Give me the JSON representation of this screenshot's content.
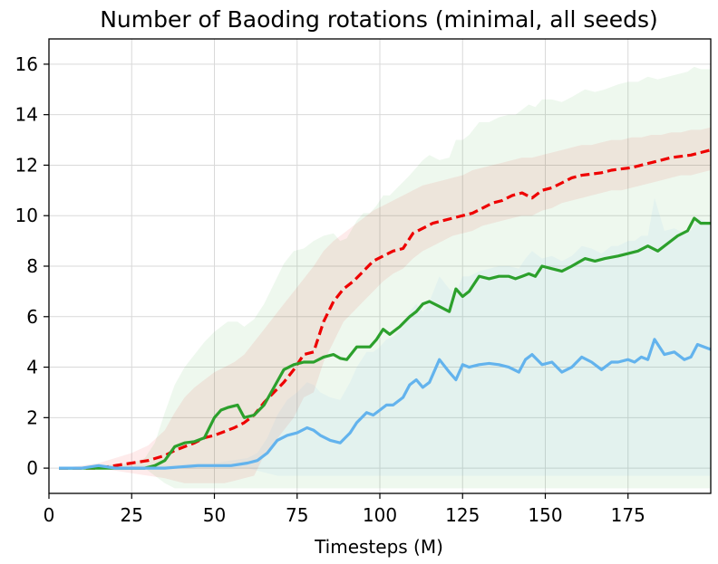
{
  "chart_data": {
    "type": "line",
    "title": "Number of Baoding rotations (minimal, all seeds)",
    "xlabel": "Timesteps (M)",
    "ylabel": "",
    "xlim": [
      0,
      200
    ],
    "ylim": [
      -1,
      17
    ],
    "xticks": [
      0,
      25,
      50,
      75,
      100,
      125,
      150,
      175
    ],
    "yticks": [
      0,
      2,
      4,
      6,
      8,
      10,
      12,
      14,
      16
    ],
    "grid": true,
    "series": [
      {
        "color": "#ee0000",
        "linestyle": "dashed",
        "x": [
          3,
          10,
          15,
          20,
          25,
          30,
          35,
          38,
          41,
          44,
          47,
          50,
          53,
          56,
          59,
          62,
          65,
          68,
          71,
          74,
          77,
          80,
          83,
          86,
          89,
          92,
          95,
          98,
          101,
          104,
          107,
          110,
          113,
          116,
          119,
          122,
          125,
          128,
          131,
          134,
          137,
          140,
          143,
          146,
          149,
          152,
          155,
          158,
          161,
          164,
          167,
          170,
          173,
          176,
          179,
          182,
          185,
          188,
          191,
          194,
          197,
          200
        ],
        "y": [
          0,
          0,
          0,
          0.1,
          0.2,
          0.3,
          0.5,
          0.7,
          0.85,
          1.0,
          1.2,
          1.3,
          1.45,
          1.6,
          1.8,
          2.1,
          2.6,
          3.0,
          3.4,
          3.9,
          4.5,
          4.6,
          5.8,
          6.6,
          7.1,
          7.4,
          7.8,
          8.2,
          8.4,
          8.6,
          8.7,
          9.3,
          9.5,
          9.7,
          9.8,
          9.9,
          10.0,
          10.1,
          10.3,
          10.5,
          10.6,
          10.8,
          10.9,
          10.7,
          11.0,
          11.1,
          11.3,
          11.5,
          11.6,
          11.65,
          11.7,
          11.8,
          11.85,
          11.9,
          12.0,
          12.1,
          12.2,
          12.3,
          12.35,
          12.4,
          12.5,
          12.6
        ],
        "band_low": [
          0,
          0,
          0,
          -0.1,
          -0.2,
          -0.3,
          -0.4,
          -0.5,
          -0.6,
          -0.6,
          -0.6,
          -0.6,
          -0.6,
          -0.5,
          -0.4,
          -0.3,
          0.5,
          1.0,
          1.5,
          2.0,
          2.8,
          3.0,
          4.2,
          5.0,
          5.8,
          6.2,
          6.6,
          7.0,
          7.4,
          7.7,
          7.9,
          8.3,
          8.6,
          8.8,
          9.0,
          9.2,
          9.3,
          9.4,
          9.6,
          9.7,
          9.8,
          9.9,
          10.0,
          10.0,
          10.2,
          10.3,
          10.5,
          10.6,
          10.7,
          10.8,
          10.9,
          11.0,
          11.0,
          11.1,
          11.2,
          11.3,
          11.4,
          11.5,
          11.6,
          11.6,
          11.7,
          11.8
        ],
        "band_high": [
          0,
          0.1,
          0.2,
          0.4,
          0.6,
          0.9,
          1.5,
          2.2,
          2.8,
          3.2,
          3.5,
          3.8,
          4.0,
          4.2,
          4.5,
          5.0,
          5.5,
          6.0,
          6.5,
          7.0,
          7.5,
          8.0,
          8.6,
          9.0,
          9.3,
          9.6,
          9.9,
          10.2,
          10.4,
          10.6,
          10.8,
          11.0,
          11.2,
          11.3,
          11.4,
          11.5,
          11.6,
          11.8,
          11.9,
          12.0,
          12.1,
          12.2,
          12.3,
          12.3,
          12.4,
          12.5,
          12.6,
          12.7,
          12.8,
          12.8,
          12.9,
          13.0,
          13.0,
          13.1,
          13.1,
          13.2,
          13.2,
          13.3,
          13.3,
          13.4,
          13.4,
          13.5
        ]
      },
      {
        "color": "#2ca02c",
        "linestyle": "solid",
        "x": [
          3,
          10,
          15,
          20,
          25,
          29,
          32,
          35,
          38,
          41,
          44,
          47,
          50,
          52,
          54,
          57,
          59,
          62,
          65,
          68,
          71,
          74,
          77,
          80,
          83,
          86,
          88,
          90,
          93,
          95,
          97,
          99,
          101,
          103,
          106,
          109,
          111,
          113,
          115,
          118,
          121,
          123,
          125,
          127,
          130,
          133,
          136,
          139,
          141,
          143,
          145,
          147,
          149,
          152,
          155,
          158,
          162,
          165,
          168,
          172,
          175,
          178,
          181,
          184,
          187,
          190,
          193,
          195,
          197,
          200
        ],
        "y": [
          0,
          0,
          0,
          0,
          0,
          0,
          0.1,
          0.3,
          0.85,
          1.0,
          1.05,
          1.2,
          2.0,
          2.3,
          2.4,
          2.5,
          2.0,
          2.1,
          2.5,
          3.2,
          3.9,
          4.1,
          4.2,
          4.2,
          4.4,
          4.5,
          4.35,
          4.3,
          4.8,
          4.8,
          4.8,
          5.1,
          5.5,
          5.3,
          5.6,
          6.0,
          6.2,
          6.5,
          6.6,
          6.4,
          6.2,
          7.1,
          6.8,
          7.0,
          7.6,
          7.5,
          7.6,
          7.6,
          7.5,
          7.6,
          7.7,
          7.6,
          8.0,
          7.9,
          7.8,
          8.0,
          8.3,
          8.2,
          8.3,
          8.4,
          8.5,
          8.6,
          8.8,
          8.6,
          8.9,
          9.2,
          9.4,
          9.9,
          9.7,
          9.7
        ],
        "band_low": [
          0,
          0,
          0,
          0,
          0,
          0,
          -0.3,
          -0.6,
          -0.8,
          -0.8,
          -0.8,
          -0.8,
          -0.8,
          -0.8,
          -0.8,
          -0.8,
          -0.8,
          -0.8,
          -0.8,
          -0.8,
          -0.8,
          -0.8,
          -0.8,
          -0.8,
          -0.8,
          -0.8,
          -0.8,
          -0.8,
          -0.8,
          -0.8,
          -0.8,
          -0.8,
          -0.8,
          -0.8,
          -0.8,
          -0.8,
          -0.8,
          -0.8,
          -0.8,
          -0.8,
          -0.8,
          -0.8,
          -0.8,
          -0.8,
          -0.8,
          -0.8,
          -0.8,
          -0.8,
          -0.8,
          -0.8,
          -0.8,
          -0.8,
          -0.8,
          -0.8,
          -0.8,
          -0.8,
          -0.8,
          -0.8,
          -0.8,
          -0.8,
          -0.8,
          -0.8,
          -0.8,
          -0.8,
          -0.8,
          -0.8,
          -0.8,
          -0.8,
          -0.8,
          -0.8
        ],
        "band_high": [
          0,
          0.05,
          0.1,
          0.15,
          0.2,
          0.4,
          1.0,
          2.2,
          3.3,
          4.0,
          4.5,
          5.0,
          5.4,
          5.6,
          5.8,
          5.8,
          5.6,
          5.9,
          6.5,
          7.3,
          8.1,
          8.6,
          8.7,
          9.0,
          9.2,
          9.3,
          9.0,
          9.1,
          9.8,
          10.1,
          10.1,
          10.4,
          10.8,
          10.8,
          11.2,
          11.6,
          11.9,
          12.2,
          12.4,
          12.2,
          12.3,
          13.0,
          13.0,
          13.2,
          13.7,
          13.7,
          13.9,
          14.0,
          14.0,
          14.2,
          14.4,
          14.3,
          14.6,
          14.6,
          14.5,
          14.7,
          15.0,
          14.9,
          15.0,
          15.2,
          15.3,
          15.3,
          15.5,
          15.4,
          15.5,
          15.6,
          15.7,
          15.9,
          15.8,
          15.8
        ]
      },
      {
        "color": "#63b3ed",
        "linestyle": "solid",
        "x": [
          3,
          10,
          15,
          20,
          25,
          30,
          35,
          40,
          45,
          50,
          55,
          60,
          63,
          66,
          69,
          72,
          75,
          78,
          80,
          82,
          85,
          88,
          91,
          93,
          96,
          98,
          100,
          102,
          104,
          107,
          109,
          111,
          113,
          115,
          118,
          121,
          123,
          125,
          127,
          130,
          133,
          136,
          139,
          142,
          144,
          146,
          149,
          152,
          155,
          158,
          161,
          164,
          167,
          170,
          172,
          175,
          177,
          179,
          181,
          183,
          186,
          189,
          192,
          194,
          196,
          200
        ],
        "y": [
          0,
          0,
          0.1,
          0,
          0,
          0,
          0,
          0.05,
          0.1,
          0.1,
          0.1,
          0.2,
          0.3,
          0.6,
          1.1,
          1.3,
          1.4,
          1.6,
          1.5,
          1.3,
          1.1,
          1.0,
          1.4,
          1.8,
          2.2,
          2.1,
          2.3,
          2.5,
          2.5,
          2.8,
          3.3,
          3.5,
          3.2,
          3.4,
          4.3,
          3.8,
          3.5,
          4.1,
          4.0,
          4.1,
          4.15,
          4.1,
          4.0,
          3.8,
          4.3,
          4.5,
          4.1,
          4.2,
          3.8,
          4.0,
          4.4,
          4.2,
          3.9,
          4.2,
          4.2,
          4.3,
          4.2,
          4.4,
          4.3,
          5.1,
          4.5,
          4.6,
          4.3,
          4.4,
          4.9,
          4.7
        ],
        "band_low": [
          0,
          0,
          0,
          0,
          0,
          0,
          0,
          0,
          0,
          0,
          0,
          0,
          -0.1,
          -0.2,
          -0.3,
          -0.3,
          -0.3,
          -0.3,
          -0.3,
          -0.3,
          -0.3,
          -0.3,
          -0.3,
          -0.3,
          -0.3,
          -0.3,
          -0.3,
          -0.3,
          -0.3,
          -0.3,
          -0.3,
          -0.3,
          -0.3,
          -0.3,
          -0.3,
          -0.3,
          -0.3,
          -0.3,
          -0.3,
          -0.3,
          -0.3,
          -0.3,
          -0.3,
          -0.3,
          -0.3,
          -0.3,
          -0.3,
          -0.3,
          -0.3,
          -0.3,
          -0.3,
          -0.3,
          -0.3,
          -0.3,
          -0.3,
          -0.3,
          -0.3,
          -0.3,
          -0.3,
          -0.3,
          -0.3,
          -0.3,
          -0.3,
          -0.3,
          -0.3,
          -0.3
        ],
        "band_high": [
          0,
          0,
          0.15,
          0.1,
          0.1,
          0.1,
          0.1,
          0.15,
          0.2,
          0.2,
          0.3,
          0.4,
          0.6,
          1.2,
          2.1,
          2.7,
          3.0,
          3.4,
          3.3,
          3.0,
          2.8,
          2.7,
          3.4,
          4.0,
          4.6,
          4.6,
          4.8,
          5.1,
          5.2,
          5.6,
          6.2,
          6.5,
          6.2,
          6.6,
          7.6,
          7.1,
          6.9,
          7.6,
          7.6,
          7.8,
          7.9,
          8.0,
          8.0,
          7.9,
          8.3,
          8.6,
          8.3,
          8.4,
          8.2,
          8.4,
          8.8,
          8.7,
          8.5,
          8.8,
          8.8,
          9.0,
          9.0,
          9.2,
          9.2,
          10.7,
          9.4,
          9.5,
          9.3,
          9.4,
          9.9,
          9.7
        ]
      }
    ]
  }
}
